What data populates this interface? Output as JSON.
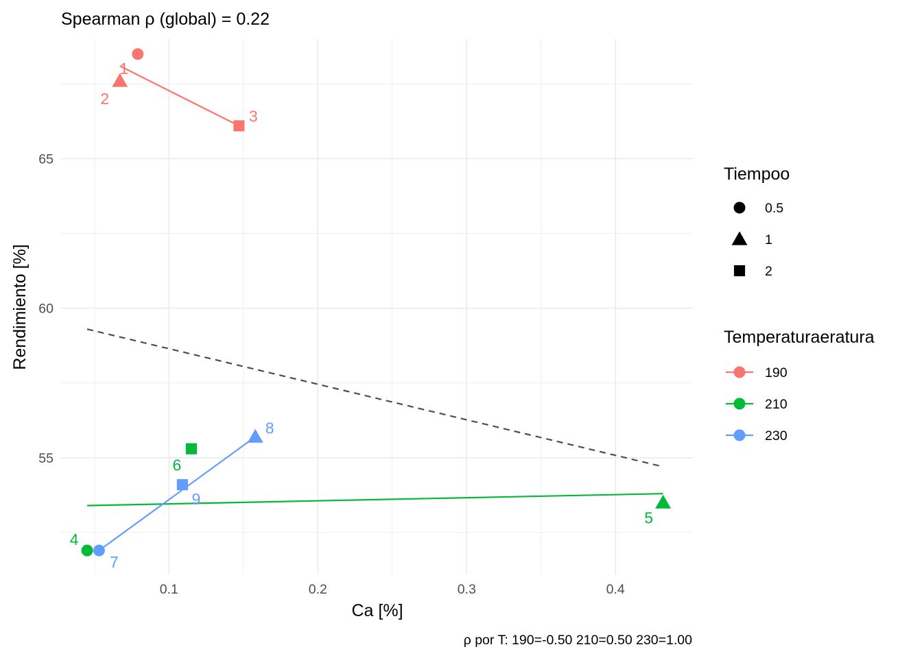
{
  "chart_data": {
    "type": "scatter",
    "title": "Spearman ρ (global) = 0.22",
    "xlabel": "Ca [%]",
    "ylabel": "Rendimiento [%]",
    "caption": "ρ por T: 190=-0.50   210=0.50   230=1.00",
    "xlim": [
      0.027,
      0.452
    ],
    "ylim": [
      51.1,
      69.0
    ],
    "x_major_ticks": [
      0.1,
      0.2,
      0.3,
      0.4
    ],
    "x_minor_ticks": [
      0.05,
      0.15,
      0.25,
      0.35
    ],
    "x_tick_labels": [
      "0.1",
      "0.2",
      "0.3",
      "0.4"
    ],
    "y_major_ticks": [
      55,
      60,
      65
    ],
    "y_minor_ticks": [
      52.5,
      57.5,
      62.5,
      67.5
    ],
    "y_tick_labels": [
      "55",
      "60",
      "65"
    ],
    "grid": true,
    "legend_position": "right",
    "legends": [
      {
        "title": "Tiempoo",
        "kind": "shape",
        "entries": [
          {
            "label": "0.5",
            "shape": "circle"
          },
          {
            "label": "1",
            "shape": "triangle"
          },
          {
            "label": "2",
            "shape": "square"
          }
        ]
      },
      {
        "title": "Temperaturaeratura",
        "kind": "color",
        "entries": [
          {
            "label": "190",
            "color": "#F8766D"
          },
          {
            "label": "210",
            "color": "#00BA38"
          },
          {
            "label": "230",
            "color": "#619CFF"
          }
        ]
      }
    ],
    "series": [
      {
        "name": "190",
        "color": "#F8766D",
        "points": [
          {
            "label": "1",
            "x": 0.079,
            "y": 68.5,
            "tiempo": "0.5",
            "shape": "circle"
          },
          {
            "label": "2",
            "x": 0.067,
            "y": 67.6,
            "tiempo": "1",
            "shape": "triangle"
          },
          {
            "label": "3",
            "x": 0.147,
            "y": 66.1,
            "tiempo": "2",
            "shape": "square"
          }
        ],
        "fit": {
          "x": [
            0.067,
            0.147
          ],
          "y": [
            68.1,
            66.1
          ]
        }
      },
      {
        "name": "210",
        "color": "#00BA38",
        "points": [
          {
            "label": "4",
            "x": 0.045,
            "y": 51.9,
            "tiempo": "0.5",
            "shape": "circle"
          },
          {
            "label": "5",
            "x": 0.432,
            "y": 53.5,
            "tiempo": "1",
            "shape": "triangle"
          },
          {
            "label": "6",
            "x": 0.115,
            "y": 55.3,
            "tiempo": "2",
            "shape": "square"
          }
        ],
        "fit": {
          "x": [
            0.045,
            0.432
          ],
          "y": [
            53.4,
            53.8
          ]
        }
      },
      {
        "name": "230",
        "color": "#619CFF",
        "points": [
          {
            "label": "7",
            "x": 0.053,
            "y": 51.9,
            "tiempo": "0.5",
            "shape": "circle"
          },
          {
            "label": "8",
            "x": 0.158,
            "y": 55.7,
            "tiempo": "1",
            "shape": "triangle"
          },
          {
            "label": "9",
            "x": 0.109,
            "y": 54.1,
            "tiempo": "2",
            "shape": "square"
          }
        ],
        "fit": {
          "x": [
            0.053,
            0.158
          ],
          "y": [
            51.9,
            55.7
          ]
        }
      }
    ],
    "global_fit": {
      "x": [
        0.045,
        0.432
      ],
      "y": [
        59.3,
        54.7
      ],
      "color": "#4d4d4d",
      "style": "dashed"
    }
  }
}
